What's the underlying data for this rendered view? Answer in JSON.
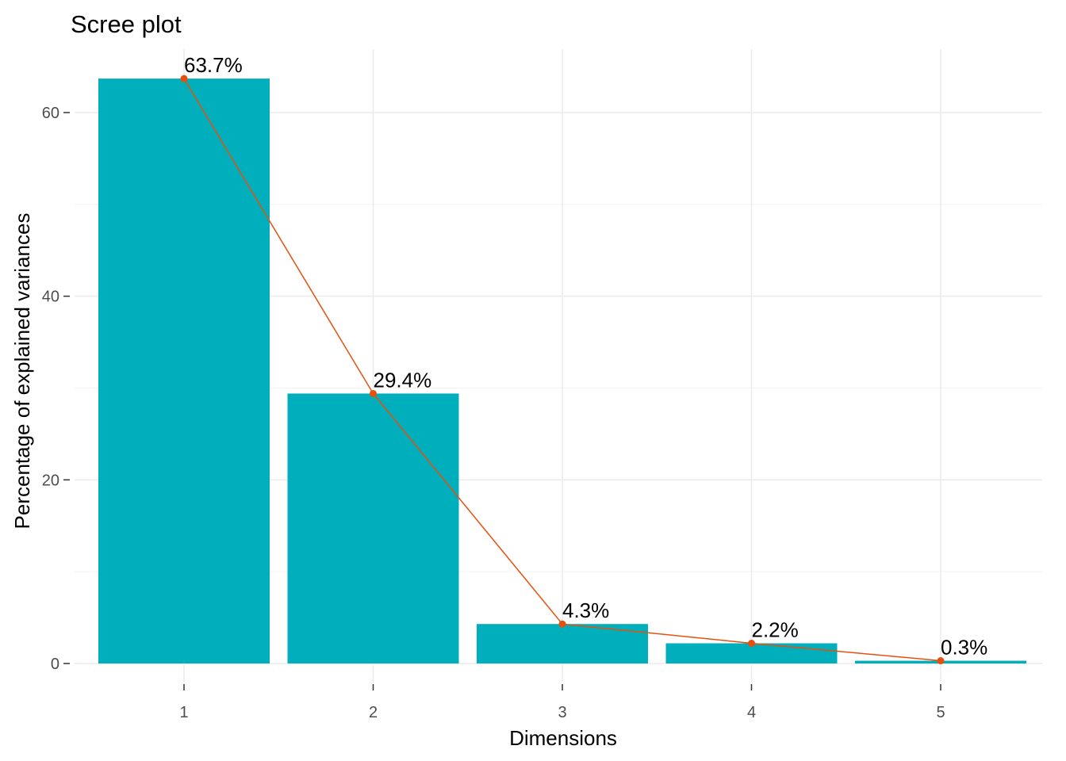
{
  "chart_data": {
    "type": "bar",
    "title": "Scree plot",
    "xlabel": "Dimensions",
    "ylabel": "Percentage of explained variances",
    "categories": [
      "1",
      "2",
      "3",
      "4",
      "5"
    ],
    "values": [
      63.7,
      29.4,
      4.3,
      2.2,
      0.3
    ],
    "data_labels": [
      "63.7%",
      "29.4%",
      "4.3%",
      "2.2%",
      "0.3%"
    ],
    "ylim": [
      0,
      68
    ],
    "yticks": [
      0,
      20,
      40,
      60
    ],
    "grid": true,
    "legend": "none",
    "overlay_line": {
      "type": "line",
      "values": [
        63.7,
        29.4,
        4.3,
        2.2,
        0.3
      ]
    },
    "colors": {
      "bar": "#00AFBB",
      "line": "#E7500C",
      "grid": "#ebebeb"
    }
  }
}
